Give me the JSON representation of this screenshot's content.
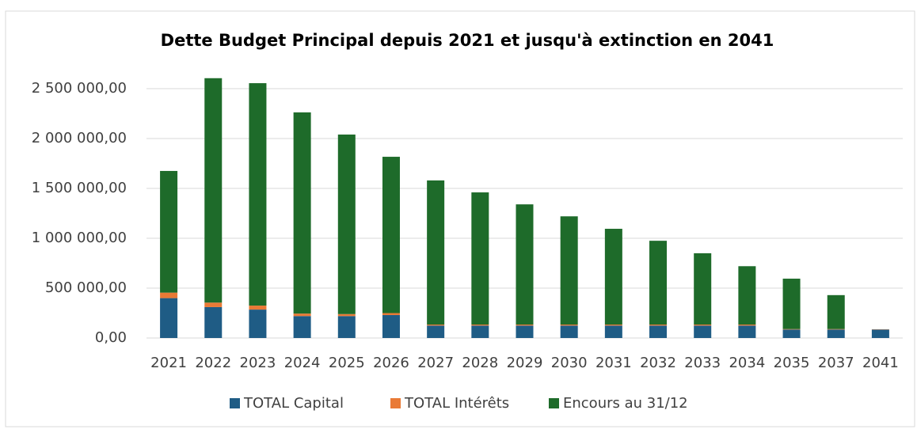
{
  "chart_data": {
    "type": "stacked_bar",
    "title": "Dette Budget Principal depuis 2021 et jusqu'à extinction en 2041",
    "categories": [
      "2021",
      "2022",
      "2023",
      "2024",
      "2025",
      "2026",
      "2027",
      "2028",
      "2029",
      "2030",
      "2031",
      "2032",
      "2033",
      "2034",
      "2035",
      "2037",
      "2041"
    ],
    "series": [
      {
        "name": "TOTAL Capital",
        "color": "#1f5c85",
        "values": [
          400000,
          310000,
          285000,
          220000,
          220000,
          230000,
          125000,
          125000,
          125000,
          125000,
          125000,
          125000,
          125000,
          125000,
          85000,
          85000,
          85000
        ]
      },
      {
        "name": "TOTAL Intérêts",
        "color": "#e97a36",
        "values": [
          55000,
          45000,
          40000,
          25000,
          20000,
          20000,
          10000,
          10000,
          10000,
          10000,
          10000,
          10000,
          10000,
          10000,
          5000,
          5000,
          3000
        ]
      },
      {
        "name": "Encours au 31/12",
        "color": "#1e6b2a",
        "values": [
          1220000,
          2250000,
          2230000,
          2017000,
          1800000,
          1567000,
          1445000,
          1325000,
          1205000,
          1085000,
          960000,
          840000,
          715000,
          585000,
          505000,
          340000,
          0
        ]
      }
    ],
    "ylim": [
      0,
      2600000
    ],
    "yticks": [
      {
        "value": 0,
        "label": "0,00"
      },
      {
        "value": 500000,
        "label": "500 000,00"
      },
      {
        "value": 1000000,
        "label": "1 000 000,00"
      },
      {
        "value": 1500000,
        "label": "1 500 000,00"
      },
      {
        "value": 2000000,
        "label": "2 000 000,00"
      },
      {
        "value": 2500000,
        "label": "2 500 000,00"
      }
    ],
    "grid": true,
    "legend": "bottom"
  }
}
